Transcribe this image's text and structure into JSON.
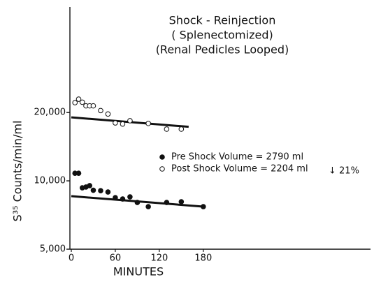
{
  "chart_data": {
    "type": "scatter",
    "title_lines": [
      "Shock - Reinjection",
      "( Splenectomized)",
      "(Renal Pedicles Looped)"
    ],
    "x_label": "MINUTES",
    "y_label": "S³⁵ Counts/min/ml",
    "log_y": true,
    "xlim": [
      0,
      408
    ],
    "ylim": [
      5000,
      60000
    ],
    "xticks": [
      0,
      60,
      120,
      180
    ],
    "yticks": [
      {
        "value": 5000,
        "label": "5,000"
      },
      {
        "value": 10000,
        "label": "10,000"
      },
      {
        "value": 20000,
        "label": "20,000"
      }
    ],
    "series": [
      {
        "name": "Pre Shock Volume = 2790 ml",
        "marker": "filled",
        "color": "#111111",
        "x": [
          5,
          10,
          15,
          20,
          25,
          30,
          40,
          50,
          60,
          70,
          80,
          90,
          105,
          130,
          150,
          180
        ],
        "values": [
          10800,
          10800,
          9320,
          9390,
          9530,
          9090,
          9050,
          8930,
          8430,
          8320,
          8500,
          8030,
          7700,
          8030,
          8090,
          7700
        ]
      },
      {
        "name": "Post Shock Volume = 2204 ml",
        "marker": "open",
        "color": "#111111",
        "x": [
          5,
          10,
          15,
          20,
          25,
          30,
          40,
          50,
          60,
          70,
          80,
          105,
          130,
          150
        ],
        "values": [
          22100,
          22900,
          22200,
          21400,
          21400,
          21400,
          20400,
          19700,
          18000,
          17800,
          18400,
          17900,
          16900,
          16900
        ]
      }
    ],
    "fit_lines": [
      {
        "x": [
          0,
          180
        ],
        "values": [
          8560,
          7700
        ]
      },
      {
        "x": [
          0,
          160
        ],
        "values": [
          19040,
          17300
        ]
      }
    ],
    "annotation": "↓ 21%"
  }
}
